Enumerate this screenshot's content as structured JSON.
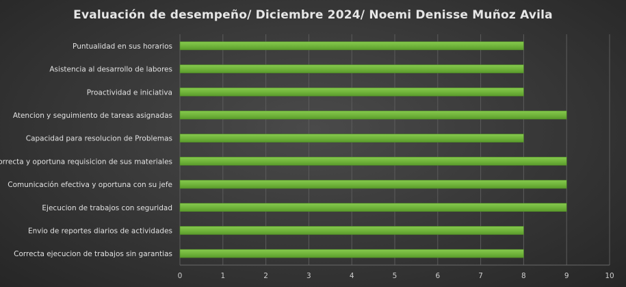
{
  "chart_data": {
    "type": "bar",
    "orientation": "horizontal",
    "title": "Evaluación de desempeño/ Diciembre 2024/ Noemi Denisse Muñoz Avila",
    "xlabel": "",
    "ylabel": "",
    "categories": [
      "Puntualidad en sus horarios",
      "Asistencia al desarrollo de labores",
      "Proactividad e iniciativa",
      "Atencion y seguimiento de tareas asignadas",
      "Capacidad para resolucion de Problemas",
      "Correcta y oportuna requisicion de sus materiales",
      "Comunicación  efectiva y oportuna con su jefe",
      "Ejecucion de trabajos con seguridad",
      "Envio de reportes diarios de actividades",
      "Correcta ejecucion de trabajos sin garantias"
    ],
    "values": [
      8,
      8,
      8,
      9,
      8,
      9,
      9,
      9,
      8,
      8
    ],
    "xlim": [
      0,
      10
    ],
    "xticks": [
      "0",
      "1",
      "2",
      "3",
      "4",
      "5",
      "6",
      "7",
      "8",
      "9",
      "10"
    ],
    "grid": true,
    "legend": "none",
    "bar_color": "#70b53a"
  }
}
